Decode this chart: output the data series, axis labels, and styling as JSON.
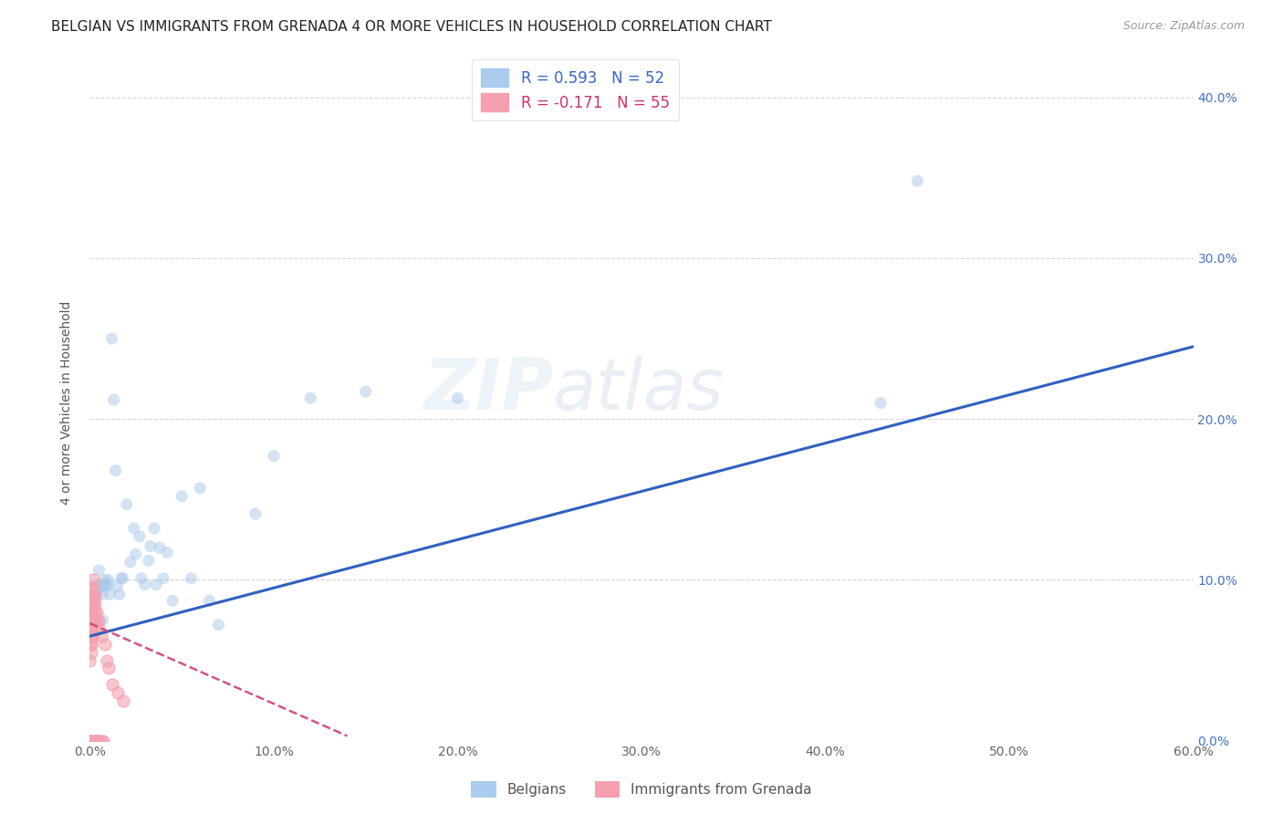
{
  "title": "BELGIAN VS IMMIGRANTS FROM GRENADA 4 OR MORE VEHICLES IN HOUSEHOLD CORRELATION CHART",
  "source": "Source: ZipAtlas.com",
  "ylabel": "4 or more Vehicles in Household",
  "xlim": [
    0.0,
    0.6
  ],
  "ylim": [
    0.0,
    0.42
  ],
  "xticks": [
    0.0,
    0.1,
    0.2,
    0.3,
    0.4,
    0.5,
    0.6
  ],
  "yticks": [
    0.0,
    0.1,
    0.2,
    0.3,
    0.4
  ],
  "legend_labels": [
    "R = 0.593   N = 52",
    "R = -0.171   N = 55"
  ],
  "blue_color": "#a8c8e8",
  "pink_color": "#f4a0b0",
  "blue_line_color": "#3060c0",
  "pink_line_color": "#d04070",
  "background_color": "#ffffff",
  "grid_color": "#cccccc",
  "title_fontsize": 11,
  "label_fontsize": 10,
  "tick_fontsize": 10,
  "belgians_x": [
    0.001,
    0.002,
    0.002,
    0.003,
    0.003,
    0.004,
    0.005,
    0.005,
    0.006,
    0.006,
    0.007,
    0.007,
    0.008,
    0.008,
    0.009,
    0.01,
    0.01,
    0.011,
    0.012,
    0.013,
    0.014,
    0.015,
    0.016,
    0.017,
    0.018,
    0.02,
    0.022,
    0.024,
    0.025,
    0.027,
    0.028,
    0.03,
    0.032,
    0.033,
    0.035,
    0.036,
    0.038,
    0.04,
    0.042,
    0.045,
    0.05,
    0.055,
    0.06,
    0.065,
    0.07,
    0.09,
    0.1,
    0.12,
    0.15,
    0.2,
    0.43,
    0.45
  ],
  "belgians_y": [
    0.082,
    0.091,
    0.076,
    0.095,
    0.087,
    0.092,
    0.106,
    0.097,
    0.096,
    0.097,
    0.091,
    0.075,
    0.097,
    0.1,
    0.096,
    0.097,
    0.1,
    0.091,
    0.25,
    0.212,
    0.168,
    0.096,
    0.091,
    0.101,
    0.101,
    0.147,
    0.111,
    0.132,
    0.116,
    0.127,
    0.101,
    0.097,
    0.112,
    0.121,
    0.132,
    0.097,
    0.12,
    0.101,
    0.117,
    0.087,
    0.152,
    0.101,
    0.157,
    0.087,
    0.072,
    0.141,
    0.177,
    0.213,
    0.217,
    0.213,
    0.21,
    0.348
  ],
  "grenada_x": [
    0.0,
    0.0,
    0.0,
    0.0,
    0.0,
    0.0,
    0.0,
    0.0,
    0.0,
    0.0,
    0.0,
    0.001,
    0.001,
    0.001,
    0.001,
    0.001,
    0.001,
    0.001,
    0.001,
    0.001,
    0.001,
    0.001,
    0.001,
    0.002,
    0.002,
    0.002,
    0.002,
    0.002,
    0.002,
    0.002,
    0.002,
    0.002,
    0.003,
    0.003,
    0.003,
    0.003,
    0.003,
    0.003,
    0.003,
    0.004,
    0.004,
    0.004,
    0.004,
    0.005,
    0.005,
    0.005,
    0.006,
    0.006,
    0.007,
    0.008,
    0.009,
    0.01,
    0.012,
    0.015,
    0.018
  ],
  "grenada_y": [
    0.0,
    0.0,
    0.0,
    0.0,
    0.0,
    0.0,
    0.0,
    0.0,
    0.0,
    0.0,
    0.05,
    0.06,
    0.055,
    0.065,
    0.07,
    0.075,
    0.08,
    0.085,
    0.09,
    0.095,
    0.06,
    0.065,
    0.07,
    0.075,
    0.08,
    0.085,
    0.09,
    0.095,
    0.1,
    0.065,
    0.07,
    0.075,
    0.08,
    0.085,
    0.09,
    0.0,
    0.0,
    0.0,
    0.0,
    0.075,
    0.08,
    0.0,
    0.0,
    0.07,
    0.075,
    0.0,
    0.065,
    0.0,
    0.0,
    0.06,
    0.05,
    0.045,
    0.035,
    0.03,
    0.025
  ],
  "watermark": "ZIPatlas",
  "marker_size": 90,
  "alpha": 0.5
}
